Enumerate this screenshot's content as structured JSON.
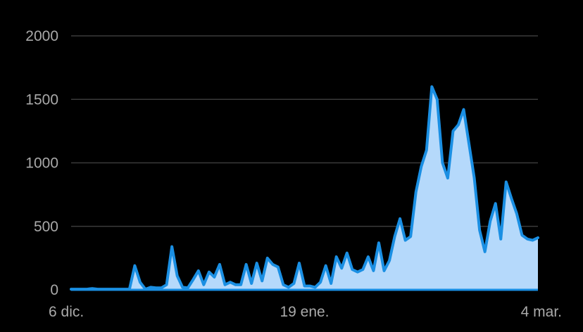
{
  "chart_data": {
    "type": "area",
    "title": "",
    "xlabel": "",
    "ylabel": "",
    "x_start_label": "6 dic.",
    "x_ticks": [
      {
        "label": "6 dic.",
        "index": 0
      },
      {
        "label": "19 ene.",
        "index": 44
      },
      {
        "label": "4 mar.",
        "index": 88
      }
    ],
    "y_ticks": [
      0,
      500,
      1000,
      1500,
      2000
    ],
    "ylim": [
      0,
      2000
    ],
    "grid": true,
    "colors": {
      "line": "#1a8fe3",
      "fill": "#b5d9fb",
      "grid": "#3a3a3a",
      "text": "#a9a9a9"
    },
    "values": [
      5,
      5,
      5,
      5,
      10,
      5,
      5,
      5,
      5,
      5,
      5,
      5,
      190,
      60,
      5,
      20,
      15,
      15,
      40,
      340,
      110,
      20,
      15,
      80,
      150,
      40,
      140,
      100,
      200,
      40,
      60,
      40,
      40,
      200,
      50,
      210,
      70,
      250,
      200,
      180,
      40,
      20,
      50,
      210,
      30,
      30,
      20,
      60,
      190,
      50,
      260,
      170,
      290,
      160,
      140,
      160,
      260,
      150,
      370,
      150,
      230,
      420,
      560,
      390,
      420,
      770,
      970,
      1100,
      1600,
      1500,
      1000,
      880,
      1250,
      1300,
      1420,
      1150,
      880,
      470,
      300,
      540,
      680,
      400,
      850,
      720,
      600,
      430,
      400,
      390,
      410
    ]
  }
}
